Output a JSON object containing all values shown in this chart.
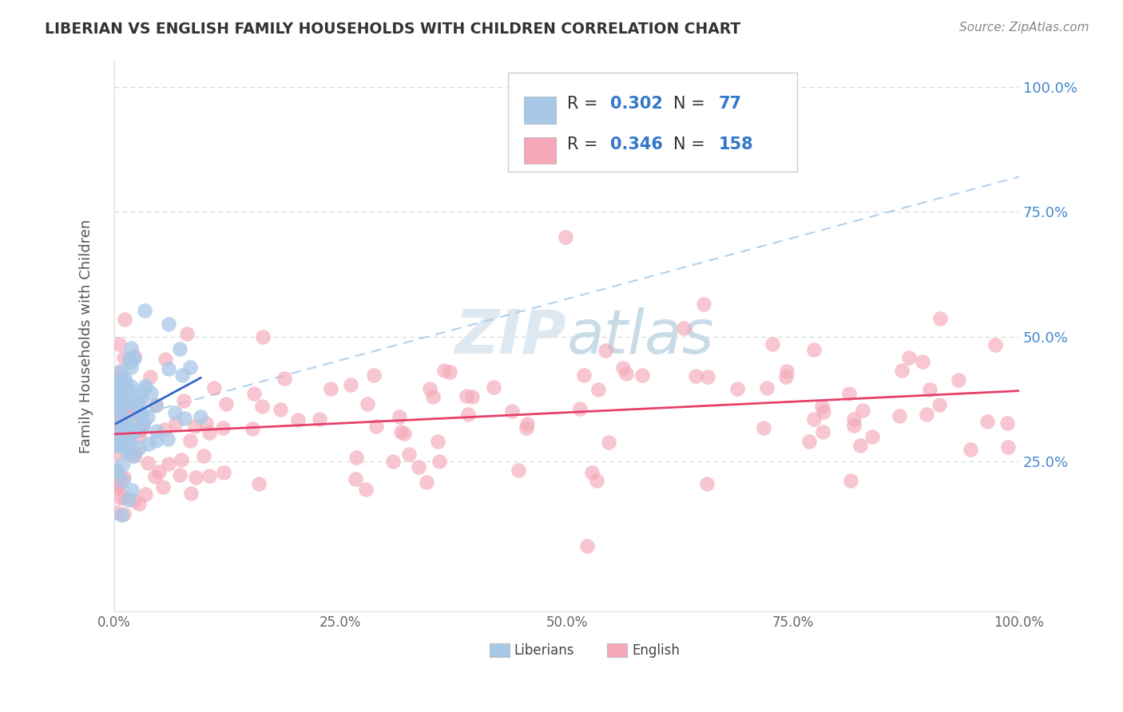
{
  "title": "LIBERIAN VS ENGLISH FAMILY HOUSEHOLDS WITH CHILDREN CORRELATION CHART",
  "source": "Source: ZipAtlas.com",
  "ylabel": "Family Households with Children",
  "xlim": [
    0,
    1
  ],
  "ylim": [
    -0.05,
    1.05
  ],
  "xtick_labels": [
    "0.0%",
    "25.0%",
    "50.0%",
    "75.0%",
    "100.0%"
  ],
  "xtick_vals": [
    0,
    0.25,
    0.5,
    0.75,
    1.0
  ],
  "ytick_labels": [
    "25.0%",
    "50.0%",
    "75.0%",
    "100.0%"
  ],
  "ytick_vals": [
    0.25,
    0.5,
    0.75,
    1.0
  ],
  "liberian_R": 0.302,
  "liberian_N": 77,
  "english_R": 0.346,
  "english_N": 158,
  "liberian_color": "#a8c8e8",
  "english_color": "#f4a8b8",
  "liberian_line_color": "#3366cc",
  "english_line_color": "#e8406a",
  "dashed_line_color": "#aaccee",
  "watermark_color": "#dde8f0",
  "background_color": "#ffffff",
  "grid_color": "#cccccc",
  "ytick_color": "#4488cc",
  "xtick_color": "#666666",
  "title_color": "#333333",
  "source_color": "#888888",
  "ylabel_color": "#555555"
}
